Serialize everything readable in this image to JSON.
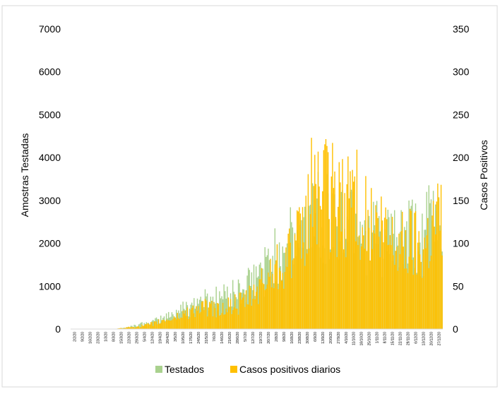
{
  "chart_data": {
    "type": "bar",
    "title": "",
    "ylabel": "Amostras Testadas",
    "y2label": "Casos Positivos",
    "ylim": [
      0,
      7000
    ],
    "y2lim": [
      0,
      350
    ],
    "yticks": [
      "0",
      "1000",
      "2000",
      "3000",
      "4000",
      "5000",
      "6000",
      "7000"
    ],
    "y2ticks": [
      "0",
      "50",
      "100",
      "150",
      "200",
      "250",
      "300",
      "350"
    ],
    "x_tick_labels": [
      "2/2/20",
      "9/2/20",
      "16/2/20",
      "23/2/20",
      "1/3/20",
      "8/3/20",
      "15/3/20",
      "22/3/20",
      "29/3/20",
      "5/4/20",
      "12/4/20",
      "19/4/20",
      "26/4/20",
      "3/5/20",
      "10/5/20",
      "17/5/20",
      "24/5/20",
      "31/5/20",
      "7/6/20",
      "14/6/20",
      "21/6/20",
      "28/6/20",
      "5/7/20",
      "12/7/20",
      "19/7/20",
      "26/7/20",
      "2/8/20",
      "9/8/20",
      "16/8/20",
      "23/8/20",
      "30/8/20",
      "6/9/20",
      "13/9/20",
      "20/9/20",
      "27/9/20",
      "4/10/20",
      "11/10/20",
      "18/10/20",
      "25/10/20",
      "1/11/20",
      "8/11/20",
      "15/11/20",
      "22/11/20",
      "29/11/20",
      "6/12/20",
      "13/12/20",
      "20/12/20",
      "27/12/20"
    ],
    "legend_position": "bottom",
    "grid": false,
    "series": [
      {
        "name": "Testados",
        "axis": "left",
        "color": "#a9d18e",
        "weekly_values": [
          0,
          0,
          0,
          0,
          0,
          0,
          10,
          30,
          70,
          110,
          130,
          190,
          260,
          330,
          420,
          520,
          600,
          660,
          700,
          730,
          770,
          800,
          880,
          1020,
          1180,
          1380,
          1620,
          1850,
          1950,
          1990,
          2100,
          2650,
          2800,
          2600,
          2450,
          2400,
          2750,
          2550,
          2300,
          2150,
          2050,
          1950,
          2000,
          2050,
          2150,
          1900,
          2300,
          2600
        ]
      },
      {
        "name": "Casos positivos diarios",
        "axis": "right",
        "color": "#ffc000",
        "weekly_values": [
          0,
          0,
          0,
          0,
          0,
          0,
          0.5,
          1.5,
          2.5,
          3.5,
          5,
          7,
          10,
          12,
          15,
          20,
          22,
          25,
          24,
          22,
          25,
          28,
          30,
          35,
          45,
          55,
          70,
          80,
          90,
          95,
          105,
          160,
          170,
          155,
          150,
          140,
          165,
          150,
          125,
          115,
          110,
          105,
          100,
          100,
          105,
          95,
          110,
          130
        ]
      }
    ]
  }
}
